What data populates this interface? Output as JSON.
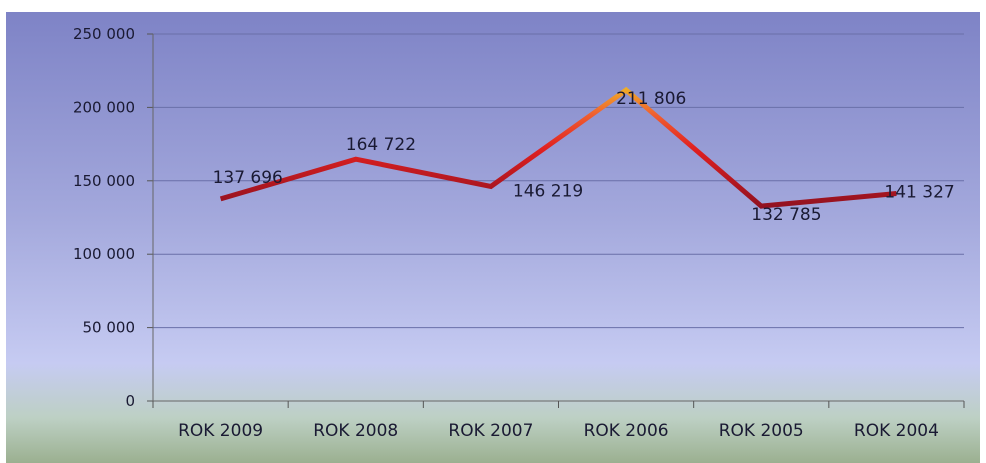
{
  "chart_data": {
    "type": "line",
    "title": "",
    "xlabel": "",
    "ylabel": "",
    "categories": [
      "ROK  2009",
      "ROK  2008",
      "ROK  2007",
      "ROK 2006",
      "ROK  2005",
      "ROK 2004"
    ],
    "series": [
      {
        "values": [
          137696,
          164722,
          146219,
          211806,
          132785,
          141327
        ]
      }
    ],
    "data_labels": [
      "137 696",
      "164 722",
      "146 219",
      "211 806",
      "132 785",
      "141 327"
    ],
    "y_ticks": [
      0,
      50000,
      100000,
      150000,
      200000,
      250000
    ],
    "y_tick_labels": [
      "0",
      "50 000",
      "100 000",
      "150 000",
      "200 000",
      "250 000"
    ],
    "ylim": [
      0,
      250000
    ],
    "grid": true,
    "legend": "none",
    "colors": {
      "line_low": "#8a1020",
      "line_mid": "#e02020",
      "line_high": "#f0e020",
      "grid": "#6a6fa8"
    }
  }
}
